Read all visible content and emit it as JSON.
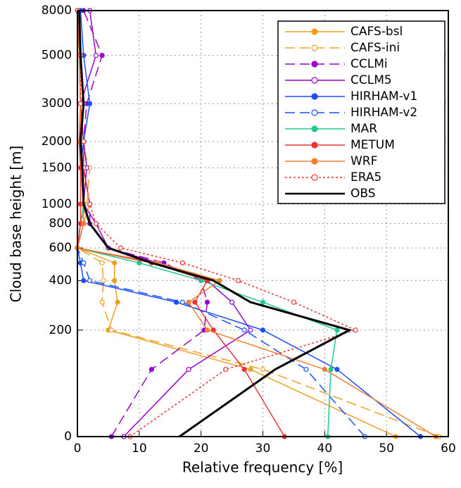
{
  "chart_data": {
    "type": "line",
    "xlabel": "Relative frequency [%]",
    "ylabel": "Cloud base height [m]",
    "xlim": [
      0,
      60
    ],
    "xticks": [
      0,
      10,
      20,
      30,
      40,
      50,
      60
    ],
    "ylim": [
      0,
      8000
    ],
    "yticks": [
      0,
      200,
      400,
      600,
      800,
      1000,
      1500,
      2000,
      3000,
      5000,
      8000
    ],
    "yscale": "log",
    "ylog_offset": 100,
    "grid": true,
    "legend": "upper right",
    "y": [
      0,
      100,
      200,
      300,
      400,
      500,
      600,
      800,
      1000,
      1500,
      2000,
      3000,
      5000,
      8000
    ],
    "series": [
      {
        "name": "CAFS-bsl",
        "color": "#f0a020",
        "dash": "solid",
        "marker": "filled",
        "values": [
          51.5,
          28,
          5,
          6.5,
          6,
          6,
          0,
          1,
          2,
          1,
          1,
          0.5,
          0.3,
          0
        ]
      },
      {
        "name": "CAFS-ini",
        "color": "#f0a020",
        "dash": "dashed",
        "marker": "open",
        "values": [
          58.5,
          30,
          5.5,
          4,
          4.2,
          4,
          0,
          0.5,
          1.5,
          2,
          0.5,
          1,
          0.5,
          0
        ]
      },
      {
        "name": "CCLMi",
        "color": "#9900cc",
        "dash": "dashed",
        "marker": "filled",
        "values": [
          5.5,
          12,
          20.5,
          21,
          20,
          14,
          5,
          2,
          2,
          1,
          1,
          1.5,
          4,
          1
        ]
      },
      {
        "name": "CCLM5",
        "color": "#9900cc",
        "dash": "solid",
        "marker": "open",
        "values": [
          7.5,
          18,
          28,
          25,
          21,
          13,
          5,
          3,
          1,
          1.5,
          1,
          0.5,
          3,
          2
        ]
      },
      {
        "name": "HIRHAM-v1",
        "color": "#1a4fff",
        "dash": "solid",
        "marker": "filled",
        "values": [
          55.5,
          42,
          30,
          16,
          1,
          0.5,
          0,
          1,
          1,
          0.5,
          1,
          2,
          1,
          0.5
        ]
      },
      {
        "name": "HIRHAM-v2",
        "color": "#1a4fff",
        "dash": "dashed",
        "marker": "open",
        "values": [
          46.5,
          37,
          27,
          17,
          2,
          1,
          0,
          0.5,
          1,
          1,
          0.5,
          1,
          0.5,
          0
        ]
      },
      {
        "name": "MAR",
        "color": "#20c890",
        "dash": "solid",
        "marker": "filled",
        "values": [
          40.5,
          41,
          42,
          30,
          20,
          10,
          0,
          0.5,
          1,
          0.5,
          0.5,
          0.5,
          0.3,
          0
        ]
      },
      {
        "name": "METUM",
        "color": "#ee3333",
        "dash": "solid",
        "marker": "filled",
        "values": [
          33.5,
          27,
          22,
          19,
          21,
          12,
          0,
          0.5,
          0.5,
          0.5,
          0.3,
          0.5,
          0.3,
          0
        ]
      },
      {
        "name": "WRF",
        "color": "#f08030",
        "dash": "solid",
        "marker": "filled",
        "values": [
          58,
          40,
          21,
          18,
          23,
          13,
          0,
          1,
          1,
          1,
          0.5,
          0.5,
          0.3,
          0
        ]
      },
      {
        "name": "ERA5",
        "color": "#ee3333",
        "dash": "dotted",
        "marker": "open",
        "values": [
          8.5,
          24,
          45,
          35,
          26,
          17,
          7,
          3,
          2,
          1,
          1,
          0.5,
          0.5,
          0
        ]
      },
      {
        "name": "OBS",
        "color": "#000000",
        "dash": "solid",
        "marker": "none",
        "values": [
          16.5,
          32,
          44,
          28,
          22,
          12,
          5,
          2,
          1,
          0.8,
          0.5,
          1,
          0.5,
          0.3
        ]
      }
    ]
  }
}
